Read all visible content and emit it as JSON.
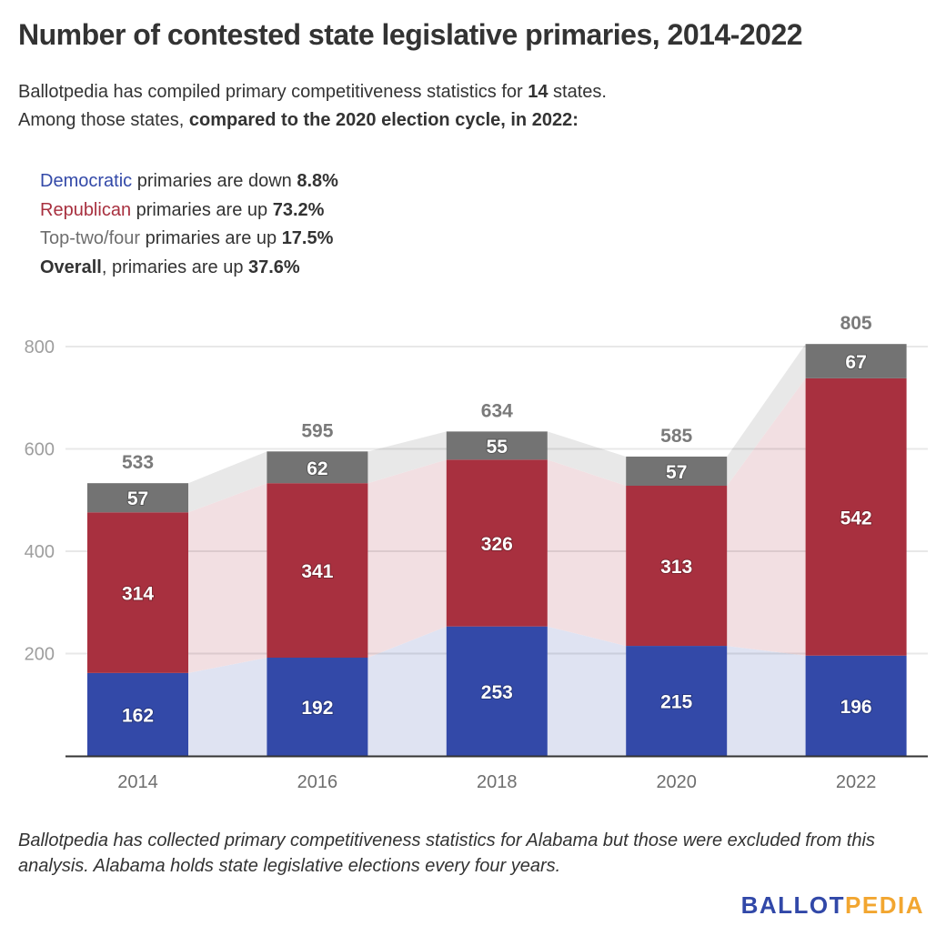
{
  "header": {
    "title": "Number of contested state legislative primaries, 2014-2022",
    "subtitle_line1_pre": "Ballotpedia has compiled primary competitiveness statistics for ",
    "subtitle_line1_bold": "14",
    "subtitle_line1_post": " states.",
    "subtitle_line2_pre": "Among those states, ",
    "subtitle_line2_bold": "compared to the 2020 election cycle, in 2022:"
  },
  "stats": [
    {
      "key": "Democratic",
      "text": " primaries are down ",
      "value": "8.8%",
      "color": "#3349a8"
    },
    {
      "key": "Republican",
      "text": " primaries are up ",
      "value": "73.2%",
      "color": "#a8303f"
    },
    {
      "key": "Top-two/four",
      "text": " primaries are up ",
      "value": "17.5%",
      "color": "#6e6e6e"
    },
    {
      "key": "Overall",
      "text": ", primaries are up ",
      "value": "37.6%",
      "color": "#333333"
    }
  ],
  "chart_data": {
    "type": "bar",
    "stacked": true,
    "title": "Number of contested state legislative primaries, 2014-2022",
    "xlabel": "",
    "ylabel": "",
    "categories": [
      "2014",
      "2016",
      "2018",
      "2020",
      "2022"
    ],
    "series": [
      {
        "name": "Democratic",
        "values": [
          162,
          192,
          253,
          215,
          196
        ],
        "color": "#3349a8",
        "band_color": "#dfe3f2"
      },
      {
        "name": "Republican",
        "values": [
          314,
          341,
          326,
          313,
          542
        ],
        "color": "#a8303f",
        "band_color": "#f2dfe2"
      },
      {
        "name": "Top-two/four",
        "values": [
          57,
          62,
          55,
          57,
          67
        ],
        "color": "#737373",
        "band_color": "#e8e8e8"
      }
    ],
    "totals": [
      533,
      595,
      634,
      585,
      805
    ],
    "ylim": [
      0,
      800
    ],
    "yticks": [
      200,
      400,
      600,
      800
    ],
    "grid": true,
    "legend": "none"
  },
  "footer": {
    "note": "Ballotpedia has collected primary competitiveness statistics for Alabama but those were excluded from this analysis. Alabama holds state legislative elections every four years.",
    "logo_part1": "BALLOT",
    "logo_part2": "PEDIA"
  }
}
